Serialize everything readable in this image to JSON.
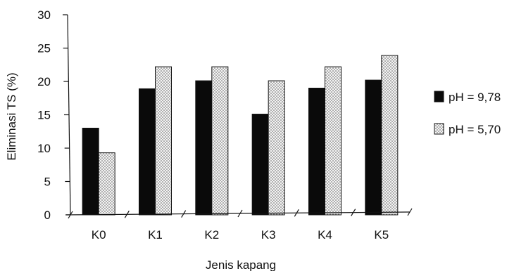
{
  "chart_data": {
    "type": "bar",
    "categories": [
      "K0",
      "K1",
      "K2",
      "K3",
      "K4",
      "K5"
    ],
    "series": [
      {
        "name": "pH = 9,78",
        "values": [
          13.0,
          18.9,
          20.1,
          15.1,
          19.0,
          20.2
        ],
        "color": "#0a0a0a",
        "fill": "solid"
      },
      {
        "name": "pH = 5,70",
        "values": [
          9.3,
          22.2,
          22.2,
          20.1,
          22.2,
          23.9
        ],
        "color": "#e4e4e4",
        "fill": "dotted"
      }
    ],
    "xlabel": "Jenis kapang",
    "ylabel": "Eliminasi TS (%)",
    "ylim": [
      0,
      30
    ],
    "yticks": [
      "0",
      "5",
      "10",
      "15",
      "20",
      "25",
      "30"
    ],
    "grid": false,
    "legend_position": "right"
  }
}
